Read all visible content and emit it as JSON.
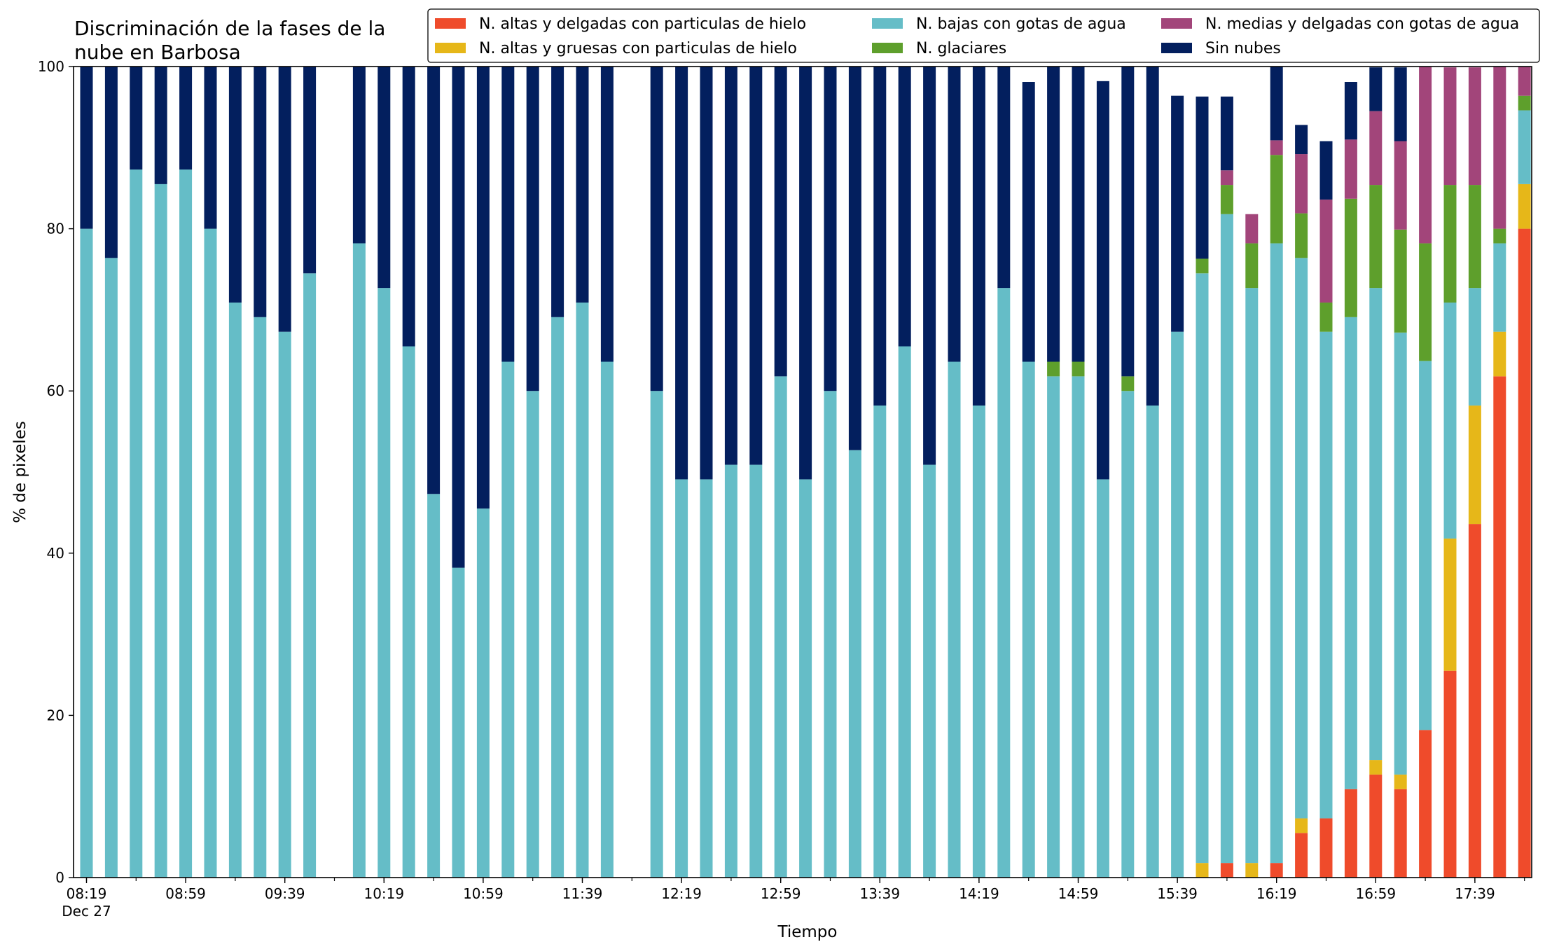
{
  "chart_data": {
    "type": "bar",
    "stacked": true,
    "title_lines": [
      "Discriminación de la fases de la",
      "nube en Barbosa"
    ],
    "xlabel": "Tiempo",
    "ylabel": "% de pixeles",
    "ylim": [
      0,
      100
    ],
    "yticks": [
      0,
      20,
      40,
      60,
      80,
      100
    ],
    "xtick_labels": [
      "08:19",
      "08:59",
      "09:39",
      "10:19",
      "10:59",
      "11:39",
      "12:19",
      "12:59",
      "13:39",
      "14:19",
      "14:59",
      "15:39",
      "16:19",
      "16:59",
      "17:39"
    ],
    "xtick_sublabel": "Dec 27",
    "legend_position": "top",
    "time_start": "08:19",
    "time_step_minutes": 10,
    "series": [
      {
        "name": "N. altas y delgadas con particulas de hielo",
        "color": "#ef4b2b",
        "values": [
          0,
          0,
          0,
          0,
          0,
          0,
          0,
          0,
          0,
          0,
          null,
          0,
          0,
          0,
          0,
          0,
          0,
          0,
          0,
          0,
          0,
          0,
          null,
          0,
          0,
          0,
          0,
          0,
          0,
          0,
          0,
          0,
          0,
          0,
          0,
          0,
          0,
          0,
          0,
          0,
          0,
          0,
          0,
          0,
          0,
          0,
          1.8,
          0,
          1.8,
          5.5,
          7.3,
          10.9,
          12.7,
          10.9,
          18.2,
          25.5,
          43.6,
          61.8,
          80.0
        ]
      },
      {
        "name": "N. altas y gruesas con particulas de hielo",
        "color": "#e6b719",
        "values": [
          0,
          0,
          0,
          0,
          0,
          0,
          0,
          0,
          0,
          0,
          null,
          0,
          0,
          0,
          0,
          0,
          0,
          0,
          0,
          0,
          0,
          0,
          null,
          0,
          0,
          0,
          0,
          0,
          0,
          0,
          0,
          0,
          0,
          0,
          0,
          0,
          0,
          0,
          0,
          0,
          0,
          0,
          0,
          0,
          0,
          1.8,
          0,
          1.8,
          0,
          1.8,
          0,
          0,
          1.8,
          1.8,
          0,
          16.3,
          14.6,
          5.5,
          5.5
        ]
      },
      {
        "name": "N. bajas con gotas de agua",
        "color": "#65bdc7",
        "values": [
          80.0,
          76.4,
          87.3,
          85.5,
          87.3,
          80.0,
          70.9,
          69.1,
          67.3,
          74.5,
          null,
          78.2,
          72.7,
          65.5,
          47.3,
          38.2,
          45.5,
          63.6,
          60.0,
          69.1,
          70.9,
          63.6,
          null,
          60.0,
          49.1,
          49.1,
          50.9,
          50.9,
          61.8,
          49.1,
          60.0,
          52.7,
          58.2,
          65.5,
          50.9,
          63.6,
          58.2,
          72.7,
          63.6,
          61.8,
          61.8,
          49.1,
          60.0,
          58.2,
          67.3,
          72.7,
          80.0,
          70.9,
          76.4,
          69.1,
          60.0,
          58.2,
          58.2,
          54.5,
          45.5,
          29.1,
          14.5,
          10.9,
          9.1
        ]
      },
      {
        "name": "N. glaciares",
        "color": "#5e9f2c",
        "values": [
          0,
          0,
          0,
          0,
          0,
          0,
          0,
          0,
          0,
          0,
          null,
          0,
          0,
          0,
          0,
          0,
          0,
          0,
          0,
          0,
          0,
          0,
          null,
          0,
          0,
          0,
          0,
          0,
          0,
          0,
          0,
          0,
          0,
          0,
          0,
          0,
          0,
          0,
          0,
          1.8,
          1.8,
          0,
          1.8,
          0,
          0,
          1.8,
          3.6,
          5.5,
          10.9,
          5.5,
          3.6,
          14.6,
          12.7,
          12.7,
          14.5,
          14.5,
          12.7,
          1.8,
          1.8
        ]
      },
      {
        "name": "N. medias y delgadas con gotas de agua",
        "color": "#a2457a",
        "values": [
          0,
          0,
          0,
          0,
          0,
          0,
          0,
          0,
          0,
          0,
          null,
          0,
          0,
          0,
          0,
          0,
          0,
          0,
          0,
          0,
          0,
          0,
          null,
          0,
          0,
          0,
          0,
          0,
          0,
          0,
          0,
          0,
          0,
          0,
          0,
          0,
          0,
          0,
          0,
          0,
          0,
          0,
          0,
          0,
          0,
          0,
          1.8,
          3.6,
          1.8,
          7.3,
          12.7,
          7.3,
          9.1,
          10.9,
          21.8,
          14.5,
          14.5,
          20.0,
          3.6
        ]
      },
      {
        "name": "Sin nubes",
        "color": "#031f5e",
        "values": [
          20.0,
          23.6,
          12.7,
          14.5,
          12.7,
          20.0,
          29.1,
          30.9,
          32.7,
          25.5,
          null,
          21.8,
          27.3,
          34.5,
          52.7,
          61.8,
          54.5,
          36.4,
          40.0,
          30.9,
          29.1,
          36.4,
          null,
          40.0,
          50.9,
          50.9,
          49.1,
          49.1,
          38.2,
          50.9,
          40.0,
          47.3,
          41.8,
          34.5,
          49.1,
          36.4,
          41.8,
          27.3,
          34.5,
          36.4,
          38.2,
          49.1,
          40.0,
          41.8,
          29.1,
          20.0,
          9.1,
          0,
          14.5,
          3.6,
          7.2,
          7.1,
          5.4,
          9.1,
          0,
          0,
          0,
          0,
          0
        ]
      }
    ]
  }
}
